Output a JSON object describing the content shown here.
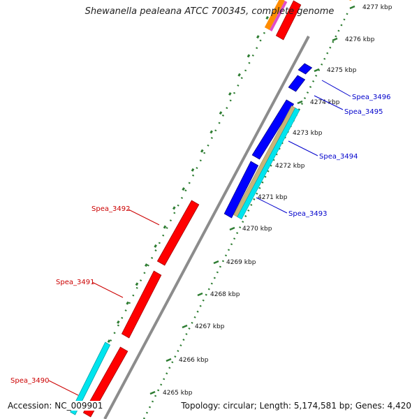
{
  "title": "Shewanella pealeana ATCC 700345, complete genome",
  "accession": "Accession: NC_009901",
  "summary": "Topology: circular; Length: 5,174,581 bp; Genes: 4,420",
  "ruler_ticks": [
    "4265 kbp",
    "4266 kbp",
    "4267 kbp",
    "4268 kbp",
    "4269 kbp",
    "4270 kbp",
    "4271 kbp",
    "4272 kbp",
    "4273 kbp",
    "4274 kbp",
    "4275 kbp",
    "4276 kbp",
    "4277 kbp"
  ],
  "gene_labels": [
    {
      "name": "Spea_3490",
      "color": "#cc0000"
    },
    {
      "name": "Spea_3491",
      "color": "#cc0000"
    },
    {
      "name": "Spea_3492",
      "color": "#cc0000"
    },
    {
      "name": "Spea_3493",
      "color": "#0000cc"
    },
    {
      "name": "Spea_3494",
      "color": "#0000cc"
    },
    {
      "name": "Spea_3495",
      "color": "#0000cc"
    },
    {
      "name": "Spea_3496",
      "color": "#0000cc"
    }
  ],
  "colors": {
    "forward_cds": "#ff0000",
    "reverse_cds": "#0000ff",
    "rna": "#00e5ee",
    "other": "#c8b478",
    "backbone": "#8c8c8c",
    "ruler": "#2e7d32"
  }
}
